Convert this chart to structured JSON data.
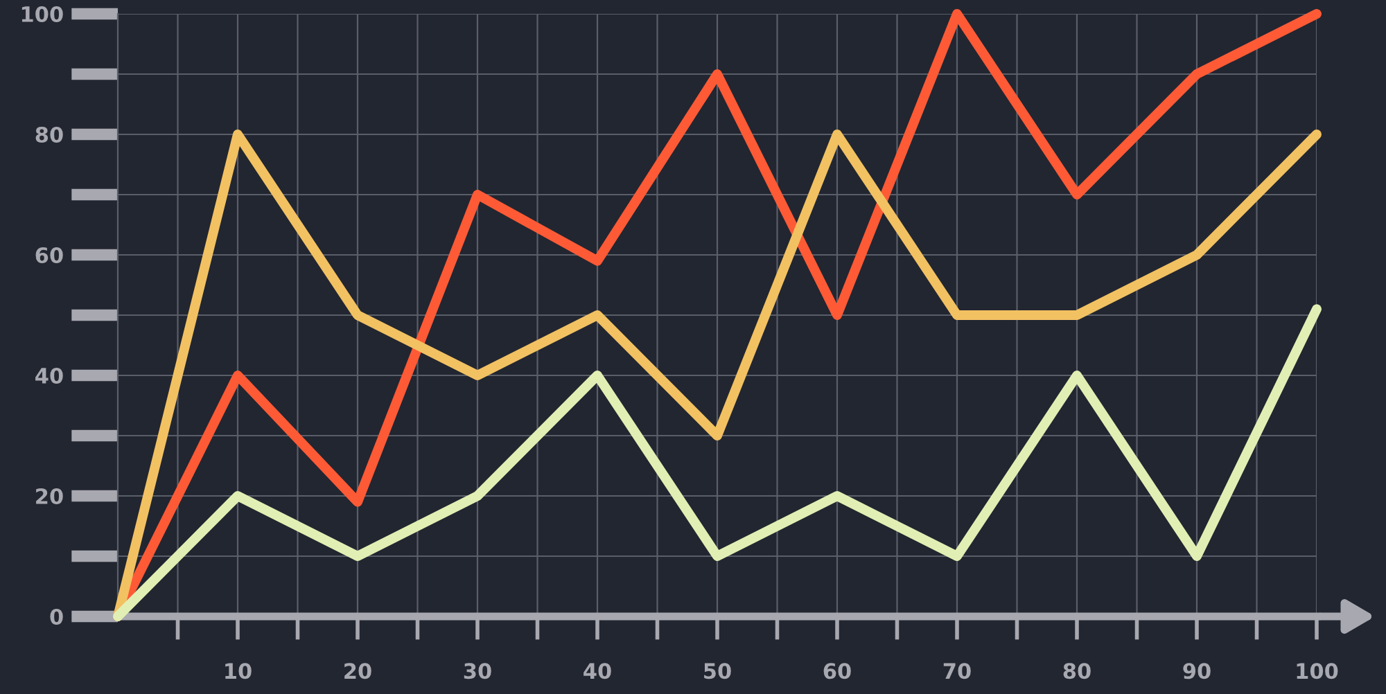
{
  "chart_data": {
    "type": "line",
    "x": [
      0,
      10,
      20,
      30,
      40,
      50,
      60,
      70,
      80,
      90,
      100
    ],
    "series": [
      {
        "color": "#ff5a36",
        "values": [
          0,
          40,
          19,
          70,
          59,
          90,
          50,
          100,
          70,
          90,
          100
        ]
      },
      {
        "color": "#f2c162",
        "values": [
          0,
          80,
          50,
          40,
          50,
          30,
          80,
          50,
          50,
          60,
          80
        ]
      },
      {
        "color": "#e2efb4",
        "values": [
          0,
          20,
          10,
          20,
          40,
          10,
          20,
          10,
          40,
          10,
          51
        ]
      }
    ],
    "xlim": [
      0,
      100
    ],
    "ylim": [
      0,
      100
    ],
    "xticks": [
      {
        "value": 5,
        "label": null
      },
      10,
      {
        "value": 15,
        "label": null
      },
      20,
      {
        "value": 25,
        "label": null
      },
      30,
      {
        "value": 35,
        "label": null
      },
      40,
      {
        "value": 45,
        "label": null
      },
      50,
      {
        "value": 55,
        "label": null
      },
      60,
      {
        "value": 65,
        "label": null
      },
      70,
      {
        "value": 75,
        "label": null
      },
      80,
      {
        "value": 85,
        "label": null
      },
      90,
      {
        "value": 95,
        "label": null
      },
      100
    ],
    "yticks": [
      0,
      {
        "value": 10,
        "label": null
      },
      20,
      {
        "value": 30,
        "label": null
      },
      40,
      {
        "value": 50,
        "label": null
      },
      60,
      {
        "value": 70,
        "label": null
      },
      80,
      {
        "value": 90,
        "label": null
      },
      100
    ],
    "grid": true,
    "marker": "none",
    "line_style": "solid",
    "legend": false
  }
}
